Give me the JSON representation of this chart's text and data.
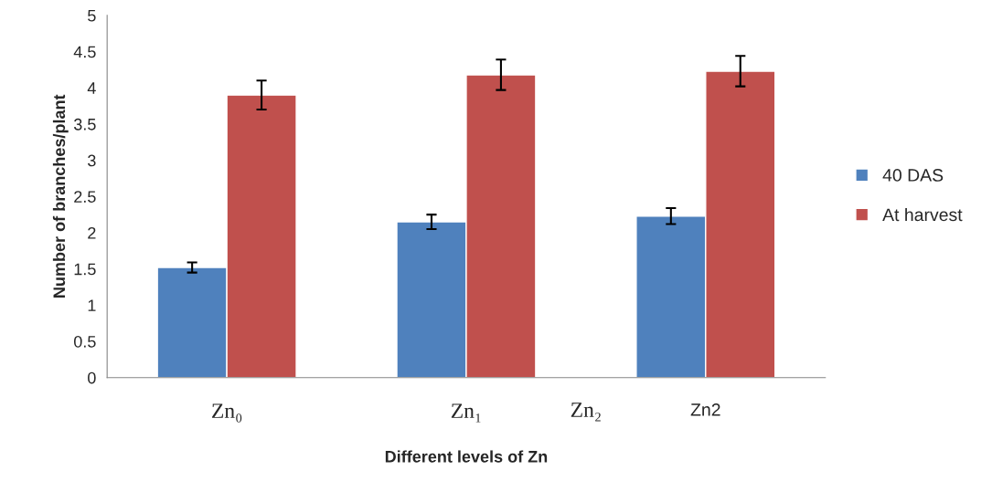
{
  "chart_data": {
    "type": "bar",
    "xlabel": "Different levels of Zn",
    "ylabel": "Number of branches/plant",
    "categories": [
      "Zn₀",
      "Zn₁",
      "Zn2"
    ],
    "series": [
      {
        "name": "40 DAS",
        "color": "#4f81bd",
        "values": [
          1.52,
          2.15,
          2.23
        ],
        "errors": [
          0.07,
          0.1,
          0.11
        ]
      },
      {
        "name": "At harvest",
        "color": "#c0504d",
        "values": [
          3.9,
          4.18,
          4.23
        ],
        "errors": [
          0.2,
          0.21,
          0.21
        ]
      }
    ],
    "ylim": [
      0,
      5
    ],
    "yticks": [
      0,
      0.5,
      1,
      1.5,
      2,
      2.5,
      3,
      3.5,
      4,
      4.5,
      5
    ],
    "annotations": [
      "Zn₂"
    ],
    "grid": false,
    "legend": "right"
  }
}
